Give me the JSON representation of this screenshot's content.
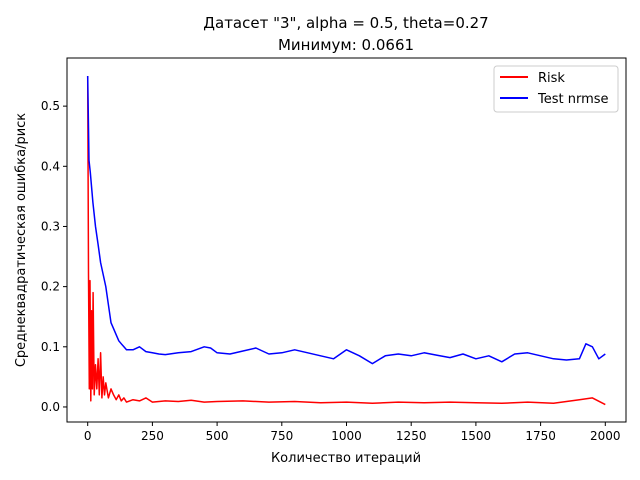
{
  "chart_data": {
    "type": "line",
    "title_line1": "Датасет \"3\", alpha = 0.5, theta=0.27",
    "title_line2": "Минимум: 0.0661",
    "xlabel": "Количество итераций",
    "ylabel": "Среднеквадратическая ошибка/риск",
    "xlim": [
      -80,
      2080
    ],
    "ylim": [
      -0.025,
      0.58
    ],
    "x_ticks": [
      0,
      250,
      500,
      750,
      1000,
      1250,
      1500,
      1750,
      2000
    ],
    "x_tick_labels": [
      "0",
      "250",
      "500",
      "750",
      "1000",
      "1250",
      "1500",
      "1750",
      "2000"
    ],
    "y_ticks": [
      0.0,
      0.1,
      0.2,
      0.3,
      0.4,
      0.5
    ],
    "y_tick_labels": [
      "0.0",
      "0.1",
      "0.2",
      "0.3",
      "0.4",
      "0.5"
    ],
    "grid": false,
    "legend_position": "top-right",
    "series": [
      {
        "name": "Risk",
        "color": "#ff0000",
        "x": [
          0,
          3,
          6,
          9,
          12,
          15,
          18,
          21,
          25,
          30,
          35,
          40,
          45,
          50,
          55,
          60,
          65,
          70,
          80,
          90,
          100,
          110,
          120,
          130,
          140,
          150,
          175,
          200,
          225,
          250,
          300,
          350,
          400,
          450,
          500,
          600,
          700,
          800,
          900,
          1000,
          1100,
          1200,
          1300,
          1400,
          1500,
          1600,
          1700,
          1800,
          1900,
          1950,
          2000
        ],
        "y": [
          0.55,
          0.22,
          0.03,
          0.21,
          0.01,
          0.16,
          0.03,
          0.19,
          0.02,
          0.07,
          0.03,
          0.08,
          0.02,
          0.09,
          0.015,
          0.05,
          0.02,
          0.04,
          0.015,
          0.03,
          0.02,
          0.012,
          0.02,
          0.01,
          0.015,
          0.008,
          0.012,
          0.01,
          0.015,
          0.008,
          0.01,
          0.009,
          0.011,
          0.008,
          0.009,
          0.01,
          0.008,
          0.009,
          0.007,
          0.008,
          0.006,
          0.008,
          0.007,
          0.008,
          0.007,
          0.006,
          0.008,
          0.006,
          0.012,
          0.015,
          0.004
        ]
      },
      {
        "name": "Test nrmse",
        "color": "#0000ff",
        "x": [
          0,
          5,
          10,
          20,
          30,
          40,
          50,
          60,
          70,
          80,
          90,
          100,
          110,
          120,
          130,
          140,
          150,
          175,
          200,
          225,
          250,
          275,
          300,
          350,
          400,
          450,
          475,
          500,
          550,
          600,
          650,
          700,
          750,
          800,
          850,
          900,
          950,
          1000,
          1050,
          1100,
          1150,
          1200,
          1250,
          1300,
          1350,
          1400,
          1450,
          1500,
          1550,
          1600,
          1650,
          1700,
          1750,
          1800,
          1850,
          1900,
          1925,
          1950,
          1975,
          2000
        ],
        "y": [
          0.55,
          0.41,
          0.39,
          0.34,
          0.3,
          0.27,
          0.24,
          0.22,
          0.2,
          0.17,
          0.14,
          0.13,
          0.12,
          0.11,
          0.105,
          0.1,
          0.095,
          0.095,
          0.1,
          0.092,
          0.09,
          0.088,
          0.087,
          0.09,
          0.092,
          0.1,
          0.098,
          0.09,
          0.088,
          0.093,
          0.098,
          0.088,
          0.09,
          0.095,
          0.09,
          0.085,
          0.08,
          0.095,
          0.085,
          0.072,
          0.085,
          0.088,
          0.085,
          0.09,
          0.086,
          0.082,
          0.088,
          0.08,
          0.085,
          0.075,
          0.088,
          0.09,
          0.085,
          0.08,
          0.078,
          0.08,
          0.105,
          0.1,
          0.08,
          0.088
        ]
      }
    ]
  }
}
